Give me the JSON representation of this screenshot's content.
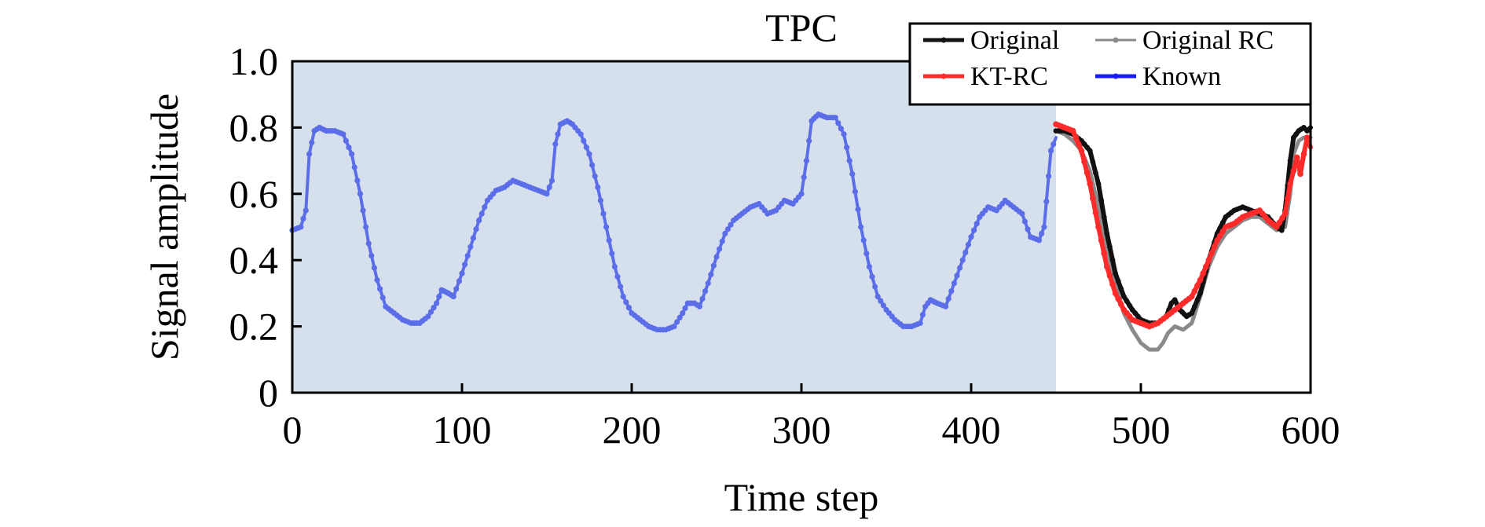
{
  "chart_data": {
    "type": "line",
    "title": "TPC",
    "xlabel": "Time step",
    "ylabel": "Signal amplitude",
    "xlim": [
      0,
      600
    ],
    "ylim": [
      0,
      1.0
    ],
    "xticks": [
      0,
      100,
      200,
      300,
      400,
      500,
      600
    ],
    "xtick_labels": [
      "0",
      "100",
      "200",
      "300",
      "400",
      "500",
      "600"
    ],
    "yticks": [
      0,
      0.2,
      0.4,
      0.6,
      0.8,
      1.0
    ],
    "ytick_labels": [
      "0",
      "0.2",
      "0.4",
      "0.6",
      "0.8",
      "1.0"
    ],
    "grid": false,
    "legend_position": "top-right",
    "known_region": [
      0,
      450
    ],
    "colors": {
      "known_region": "#d6e0ec",
      "training_line": "#5b6ee8",
      "original": "#111111",
      "original_rc": "#8a8a8a",
      "kt_rc": "#ff2a2a",
      "known": "#1a1aff"
    },
    "series": [
      {
        "name": "Known",
        "color": "#5b6ee8",
        "x": [
          0,
          5,
          8,
          10,
          13,
          16,
          20,
          25,
          30,
          35,
          40,
          45,
          50,
          55,
          60,
          65,
          70,
          75,
          80,
          85,
          88,
          92,
          95,
          100,
          105,
          110,
          115,
          120,
          125,
          130,
          135,
          140,
          145,
          150,
          153,
          155,
          158,
          162,
          165,
          170,
          175,
          180,
          185,
          190,
          195,
          200,
          205,
          210,
          215,
          220,
          225,
          230,
          233,
          237,
          240,
          245,
          250,
          255,
          260,
          265,
          270,
          275,
          280,
          285,
          290,
          295,
          300,
          303,
          306,
          310,
          315,
          320,
          325,
          330,
          335,
          340,
          345,
          350,
          355,
          360,
          365,
          370,
          373,
          376,
          380,
          385,
          390,
          395,
          400,
          405,
          410,
          415,
          420,
          425,
          430,
          435,
          440,
          443,
          447,
          450
        ],
        "y": [
          0.49,
          0.5,
          0.55,
          0.72,
          0.79,
          0.8,
          0.79,
          0.79,
          0.78,
          0.72,
          0.6,
          0.45,
          0.34,
          0.26,
          0.24,
          0.22,
          0.21,
          0.21,
          0.23,
          0.27,
          0.31,
          0.3,
          0.29,
          0.36,
          0.44,
          0.52,
          0.58,
          0.61,
          0.62,
          0.64,
          0.63,
          0.62,
          0.61,
          0.6,
          0.64,
          0.75,
          0.81,
          0.82,
          0.81,
          0.78,
          0.72,
          0.62,
          0.5,
          0.38,
          0.29,
          0.24,
          0.22,
          0.2,
          0.19,
          0.19,
          0.2,
          0.24,
          0.27,
          0.27,
          0.26,
          0.33,
          0.41,
          0.48,
          0.52,
          0.54,
          0.56,
          0.57,
          0.54,
          0.55,
          0.58,
          0.57,
          0.6,
          0.7,
          0.82,
          0.84,
          0.83,
          0.83,
          0.78,
          0.66,
          0.5,
          0.38,
          0.29,
          0.25,
          0.22,
          0.2,
          0.2,
          0.21,
          0.26,
          0.28,
          0.27,
          0.26,
          0.33,
          0.4,
          0.47,
          0.53,
          0.56,
          0.55,
          0.58,
          0.56,
          0.54,
          0.47,
          0.46,
          0.5,
          0.73,
          0.77
        ]
      },
      {
        "name": "Original",
        "color": "#111111",
        "x": [
          450,
          455,
          460,
          465,
          470,
          475,
          480,
          485,
          490,
          495,
          500,
          505,
          510,
          515,
          518,
          520,
          523,
          527,
          530,
          535,
          540,
          545,
          550,
          555,
          560,
          565,
          570,
          575,
          580,
          583,
          585,
          588,
          590,
          593,
          596,
          598,
          600
        ],
        "y": [
          0.79,
          0.79,
          0.78,
          0.76,
          0.73,
          0.63,
          0.48,
          0.36,
          0.29,
          0.25,
          0.22,
          0.21,
          0.21,
          0.23,
          0.27,
          0.28,
          0.25,
          0.23,
          0.24,
          0.3,
          0.4,
          0.48,
          0.53,
          0.55,
          0.56,
          0.55,
          0.54,
          0.53,
          0.5,
          0.49,
          0.55,
          0.7,
          0.77,
          0.79,
          0.8,
          0.79,
          0.8
        ]
      },
      {
        "name": "Original RC",
        "color": "#8a8a8a",
        "x": [
          450,
          455,
          460,
          465,
          470,
          475,
          480,
          485,
          490,
          495,
          500,
          505,
          510,
          513,
          516,
          520,
          525,
          530,
          535,
          540,
          545,
          550,
          555,
          560,
          565,
          570,
          575,
          580,
          585,
          588,
          590,
          593,
          596,
          600
        ],
        "y": [
          0.79,
          0.78,
          0.76,
          0.73,
          0.67,
          0.56,
          0.44,
          0.33,
          0.24,
          0.19,
          0.15,
          0.13,
          0.13,
          0.15,
          0.18,
          0.2,
          0.19,
          0.21,
          0.29,
          0.38,
          0.44,
          0.48,
          0.5,
          0.52,
          0.53,
          0.53,
          0.51,
          0.49,
          0.5,
          0.6,
          0.72,
          0.76,
          0.77,
          0.77
        ]
      },
      {
        "name": "KT-RC",
        "color": "#ff2a2a",
        "x": [
          450,
          455,
          460,
          465,
          470,
          475,
          480,
          485,
          490,
          495,
          500,
          505,
          510,
          515,
          520,
          525,
          530,
          535,
          540,
          545,
          550,
          555,
          560,
          565,
          570,
          575,
          580,
          585,
          588,
          590,
          592,
          594,
          596,
          598,
          600
        ],
        "y": [
          0.81,
          0.8,
          0.79,
          0.73,
          0.63,
          0.5,
          0.38,
          0.3,
          0.25,
          0.22,
          0.21,
          0.2,
          0.21,
          0.23,
          0.25,
          0.27,
          0.29,
          0.34,
          0.4,
          0.46,
          0.5,
          0.51,
          0.53,
          0.54,
          0.55,
          0.52,
          0.5,
          0.54,
          0.63,
          0.67,
          0.71,
          0.66,
          0.72,
          0.77,
          0.74
        ]
      }
    ]
  }
}
